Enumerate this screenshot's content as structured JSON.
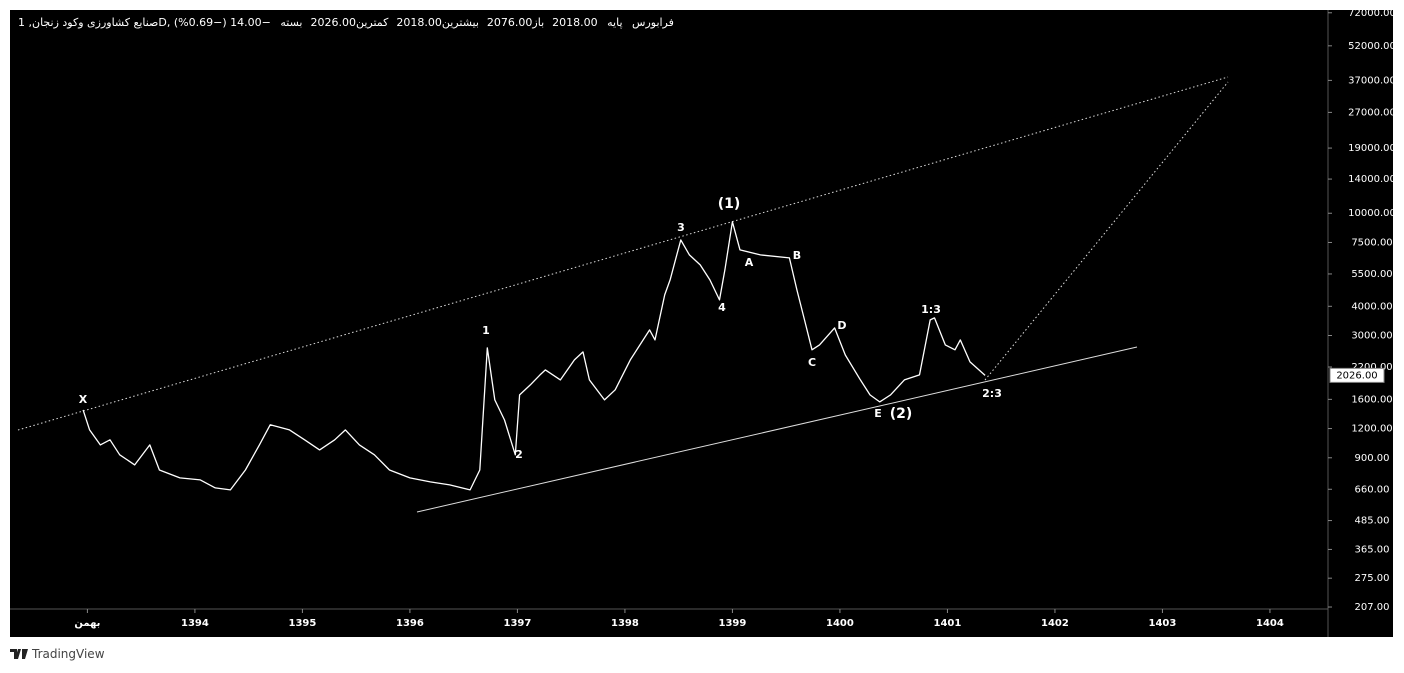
{
  "header": {
    "symbol": "صنایع کشاورزی وکود زنجان, 1D, فرابورس",
    "market": "پایه",
    "ohlc": [
      {
        "label": "باز",
        "value": "2018.00"
      },
      {
        "label": "بیشترین",
        "value": "2076.00"
      },
      {
        "label": "کمترین",
        "value": "2018.00"
      },
      {
        "label": "بسته",
        "value": "2026.00"
      }
    ],
    "change": "−14.00 (−0.69%)"
  },
  "chart_data": {
    "type": "line",
    "log_scale": true,
    "color": "#ffffff",
    "x": [
      1392.96,
      1393.02,
      1393.12,
      1393.21,
      1393.3,
      1393.44,
      1393.58,
      1393.67,
      1393.86,
      1394.05,
      1394.19,
      1394.33,
      1394.47,
      1394.6,
      1394.7,
      1394.88,
      1395.02,
      1395.16,
      1395.3,
      1395.4,
      1395.53,
      1395.67,
      1395.81,
      1396.0,
      1396.19,
      1396.37,
      1396.56,
      1396.65,
      1396.72,
      1396.79,
      1396.88,
      1396.98,
      1397.02,
      1397.12,
      1397.21,
      1397.26,
      1397.4,
      1397.53,
      1397.61,
      1397.67,
      1397.81,
      1397.91,
      1398.05,
      1398.23,
      1398.28,
      1398.37,
      1398.42,
      1398.52,
      1398.6,
      1398.7,
      1398.79,
      1398.88,
      1398.93,
      1399.0,
      1399.07,
      1399.26,
      1399.53,
      1399.6,
      1399.67,
      1399.74,
      1399.81,
      1399.95,
      1400.05,
      1400.19,
      1400.28,
      1400.37,
      1400.47,
      1400.6,
      1400.74,
      1400.84,
      1400.88,
      1400.98,
      1401.07,
      1401.12,
      1401.21,
      1401.35
    ],
    "values": [
      1442,
      1184,
      1022,
      1074,
      927,
      839,
      1022,
      798,
      738,
      724,
      669,
      656,
      798,
      1022,
      1245,
      1184,
      1074,
      973,
      1074,
      1184,
      1022,
      927,
      798,
      738,
      710,
      689,
      656,
      798,
      2655,
      1592,
      1306,
      927,
      1671,
      1845,
      2036,
      2138,
      1937,
      2360,
      2552,
      1937,
      1592,
      1757,
      2360,
      3170,
      2873,
      4477,
      5188,
      7691,
      6637,
      6012,
      5188,
      4262,
      5728,
      9188,
      6970,
      6637,
      6442,
      4700,
      3500,
      2606,
      2735,
      3234,
      2477,
      1937,
      1671,
      1560,
      1671,
      1937,
      2036,
      3500,
      3568,
      2735,
      2606,
      2873,
      2314,
      2026
    ],
    "last_label": "2026.00",
    "xlim": [
      1392.28,
      1404.54
    ],
    "xticks": [
      {
        "value": 1393,
        "label": "بهمن"
      },
      1394,
      1395,
      1396,
      1397,
      1398,
      1399,
      1400,
      1401,
      1402,
      1403,
      1404
    ],
    "ylim": [
      203,
      74000
    ],
    "yticks": [
      {
        "value": 207,
        "label": "207.00"
      },
      {
        "value": 275,
        "label": "275.00"
      },
      {
        "value": 365,
        "label": "365.00"
      },
      {
        "value": 485,
        "label": "485.00"
      },
      {
        "value": 660,
        "label": "660.00"
      },
      {
        "value": 900,
        "label": "900.00"
      },
      {
        "value": 1200,
        "label": "1200.00"
      },
      {
        "value": 1600,
        "label": "1600.00"
      },
      {
        "value": 2200,
        "label": "2200.00"
      },
      {
        "value": 3000,
        "label": "3000.00"
      },
      {
        "value": 4000,
        "label": "4000.00"
      },
      {
        "value": 5500,
        "label": "5500.00"
      },
      {
        "value": 7500,
        "label": "7500.00"
      },
      {
        "value": 10000,
        "label": "10000.00"
      },
      {
        "value": 14000,
        "label": "14000.00"
      },
      {
        "value": 19000,
        "label": "19000.00"
      },
      {
        "value": 27000,
        "label": "27000.00"
      },
      {
        "value": 37000,
        "label": "37000.00"
      },
      {
        "value": 52000,
        "label": "52000.00"
      },
      {
        "value": 72000,
        "label": "72000.00"
      }
    ],
    "annotations": [
      "X",
      "1",
      "2",
      "3",
      "(1)",
      "4",
      "A",
      "B",
      "C",
      "D",
      "E",
      "(2)",
      "1:3",
      "2:3"
    ]
  },
  "footer": {
    "brand": "TradingView"
  }
}
